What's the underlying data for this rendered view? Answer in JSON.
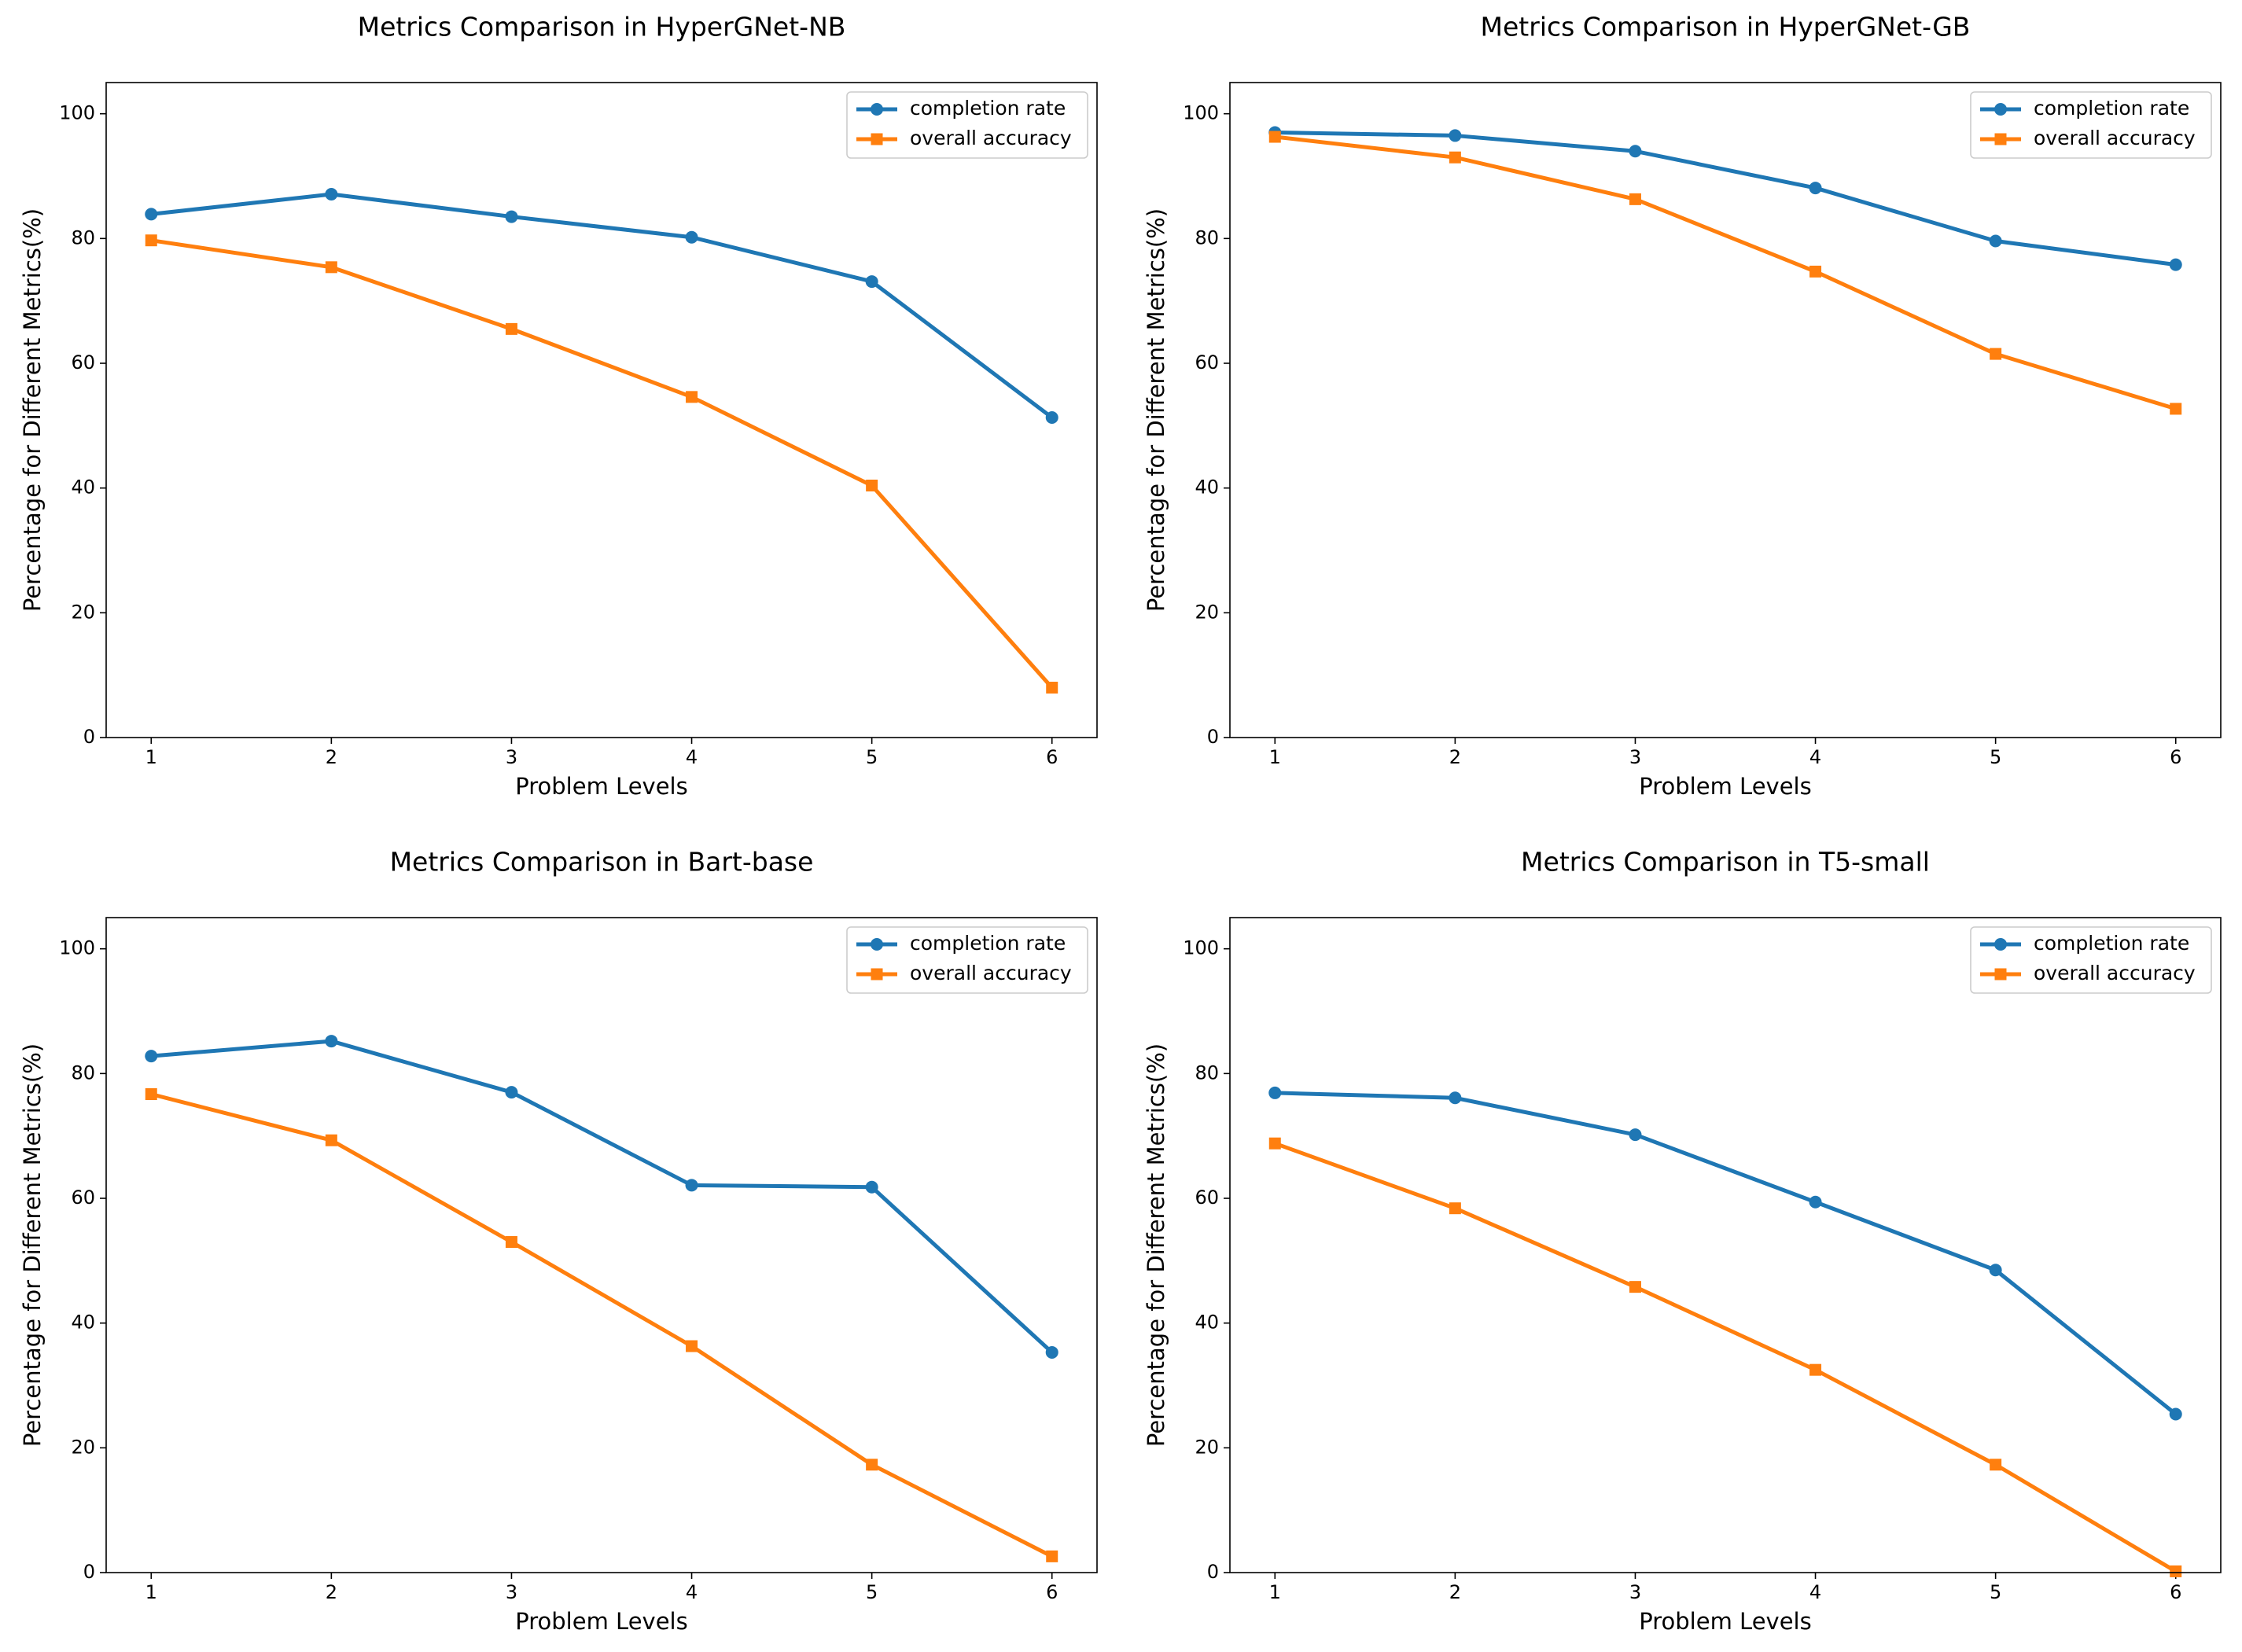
{
  "chart_data": [
    {
      "type": "line",
      "title": "Metrics Comparison in HyperGNet-NB",
      "xlabel": "Problem Levels",
      "ylabel": "Percentage for Different Metrics(%)",
      "x": [
        1,
        2,
        3,
        4,
        5,
        6
      ],
      "series": [
        {
          "name": "completion rate",
          "color": "#1f77b4",
          "marker": "circle",
          "values": [
            83.9,
            87.1,
            83.5,
            80.2,
            73.1,
            51.3
          ]
        },
        {
          "name": "overall accuracy",
          "color": "#ff7f0e",
          "marker": "square",
          "values": [
            79.7,
            75.4,
            65.5,
            54.6,
            40.4,
            8.0
          ]
        }
      ],
      "xlim": [
        0.75,
        6.25
      ],
      "ylim": [
        0,
        105
      ],
      "xticks": [
        1,
        2,
        3,
        4,
        5,
        6
      ],
      "yticks": [
        0,
        20,
        40,
        60,
        80,
        100
      ],
      "legend": "upper-right"
    },
    {
      "type": "line",
      "title": "Metrics Comparison in HyperGNet-GB",
      "xlabel": "Problem Levels",
      "ylabel": "Percentage for Different Metrics(%)",
      "x": [
        1,
        2,
        3,
        4,
        5,
        6
      ],
      "series": [
        {
          "name": "completion rate",
          "color": "#1f77b4",
          "marker": "circle",
          "values": [
            97.0,
            96.5,
            94.0,
            88.1,
            79.6,
            75.8
          ]
        },
        {
          "name": "overall accuracy",
          "color": "#ff7f0e",
          "marker": "square",
          "values": [
            96.3,
            93.0,
            86.3,
            74.7,
            61.5,
            52.7
          ]
        }
      ],
      "xlim": [
        0.75,
        6.25
      ],
      "ylim": [
        0,
        105
      ],
      "xticks": [
        1,
        2,
        3,
        4,
        5,
        6
      ],
      "yticks": [
        0,
        20,
        40,
        60,
        80,
        100
      ],
      "legend": "upper-right"
    },
    {
      "type": "line",
      "title": "Metrics Comparison in Bart-base",
      "xlabel": "Problem Levels",
      "ylabel": "Percentage for Different Metrics(%)",
      "x": [
        1,
        2,
        3,
        4,
        5,
        6
      ],
      "series": [
        {
          "name": "completion rate",
          "color": "#1f77b4",
          "marker": "circle",
          "values": [
            82.8,
            85.2,
            77.0,
            62.1,
            61.8,
            35.3
          ]
        },
        {
          "name": "overall accuracy",
          "color": "#ff7f0e",
          "marker": "square",
          "values": [
            76.7,
            69.3,
            53.0,
            36.3,
            17.3,
            2.6
          ]
        }
      ],
      "xlim": [
        0.75,
        6.25
      ],
      "ylim": [
        0,
        105
      ],
      "xticks": [
        1,
        2,
        3,
        4,
        5,
        6
      ],
      "yticks": [
        0,
        20,
        40,
        60,
        80,
        100
      ],
      "legend": "upper-right"
    },
    {
      "type": "line",
      "title": "Metrics Comparison in T5-small",
      "xlabel": "Problem Levels",
      "ylabel": "Percentage for Different Metrics(%)",
      "x": [
        1,
        2,
        3,
        4,
        5,
        6
      ],
      "series": [
        {
          "name": "completion rate",
          "color": "#1f77b4",
          "marker": "circle",
          "values": [
            76.9,
            76.1,
            70.2,
            59.4,
            48.5,
            25.4
          ]
        },
        {
          "name": "overall accuracy",
          "color": "#ff7f0e",
          "marker": "square",
          "values": [
            68.8,
            58.4,
            45.8,
            32.5,
            17.3,
            0.2
          ]
        }
      ],
      "xlim": [
        0.75,
        6.25
      ],
      "ylim": [
        0,
        105
      ],
      "xticks": [
        1,
        2,
        3,
        4,
        5,
        6
      ],
      "yticks": [
        0,
        20,
        40,
        60,
        80,
        100
      ],
      "legend": "upper-right"
    }
  ]
}
